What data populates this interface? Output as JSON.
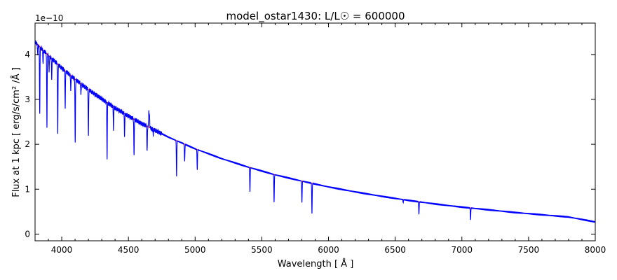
{
  "chart_data": {
    "type": "line",
    "title": "model_ostar1430: L/L☉ = 600000",
    "xlabel": "Wavelength [ Å ]",
    "ylabel": "Flux at 1 kpc [ erg/s/cm² /Å ]",
    "y_offset_label": "1e−10",
    "xlim": [
      3800,
      8000
    ],
    "ylim": [
      -0.15,
      4.7
    ],
    "x_ticks": [
      4000,
      4500,
      5000,
      5500,
      6000,
      6500,
      7000,
      7500,
      8000
    ],
    "y_ticks": [
      0,
      1,
      2,
      3,
      4
    ],
    "grid": false,
    "legend": "none",
    "continuum": {
      "color": "#ff0000",
      "x": [
        3800,
        3900,
        4000,
        4100,
        4200,
        4300,
        4400,
        4500,
        4600,
        4700,
        4800,
        4900,
        5000,
        5200,
        5400,
        5600,
        5800,
        6000,
        6200,
        6400,
        6600,
        6800,
        7000,
        7200,
        7400,
        7600,
        7800,
        8000
      ],
      "y": [
        4.28,
        3.98,
        3.7,
        3.45,
        3.22,
        3.01,
        2.81,
        2.63,
        2.46,
        2.31,
        2.16,
        2.03,
        1.9,
        1.68,
        1.49,
        1.32,
        1.18,
        1.05,
        0.94,
        0.84,
        0.75,
        0.67,
        0.6,
        0.54,
        0.48,
        0.43,
        0.38,
        0.27
      ]
    },
    "spectrum": {
      "color": "#0000ff",
      "features": [
        {
          "x": 3820,
          "y": 4.0
        },
        {
          "x": 3835,
          "y": 2.7
        },
        {
          "x": 3860,
          "y": 3.8
        },
        {
          "x": 3889,
          "y": 2.36
        },
        {
          "x": 3905,
          "y": 3.6
        },
        {
          "x": 3925,
          "y": 3.48
        },
        {
          "x": 3970,
          "y": 2.2
        },
        {
          "x": 4026,
          "y": 2.82
        },
        {
          "x": 4068,
          "y": 3.2
        },
        {
          "x": 4101,
          "y": 2.01
        },
        {
          "x": 4144,
          "y": 3.1
        },
        {
          "x": 4200,
          "y": 2.24
        },
        {
          "x": 4340,
          "y": 1.69
        },
        {
          "x": 4388,
          "y": 2.35
        },
        {
          "x": 4471,
          "y": 2.2
        },
        {
          "x": 4542,
          "y": 1.72
        },
        {
          "x": 4640,
          "y": 1.82
        },
        {
          "x": 4686,
          "y": 2.1
        },
        {
          "x": 4861,
          "y": 1.29
        },
        {
          "x": 4922,
          "y": 1.7
        },
        {
          "x": 5016,
          "y": 1.43
        },
        {
          "x": 5411,
          "y": 0.94
        },
        {
          "x": 5592,
          "y": 0.71
        },
        {
          "x": 5801,
          "y": 0.85
        },
        {
          "x": 5876,
          "y": 0.46
        },
        {
          "x": 6678,
          "y": 0.5
        },
        {
          "x": 7065,
          "y": 0.31
        }
      ],
      "emission": [
        {
          "x": 4200,
          "y": 3.17
        },
        {
          "x": 4653,
          "y": 2.75
        },
        {
          "x": 4658,
          "y": 2.65
        },
        {
          "x": 4686,
          "y": 2.45
        },
        {
          "x": 4920,
          "y": 1.88
        },
        {
          "x": 5800,
          "y": 1.02
        },
        {
          "x": 6560,
          "y": 0.7
        },
        {
          "x": 6678,
          "y": 0.66
        }
      ]
    }
  }
}
